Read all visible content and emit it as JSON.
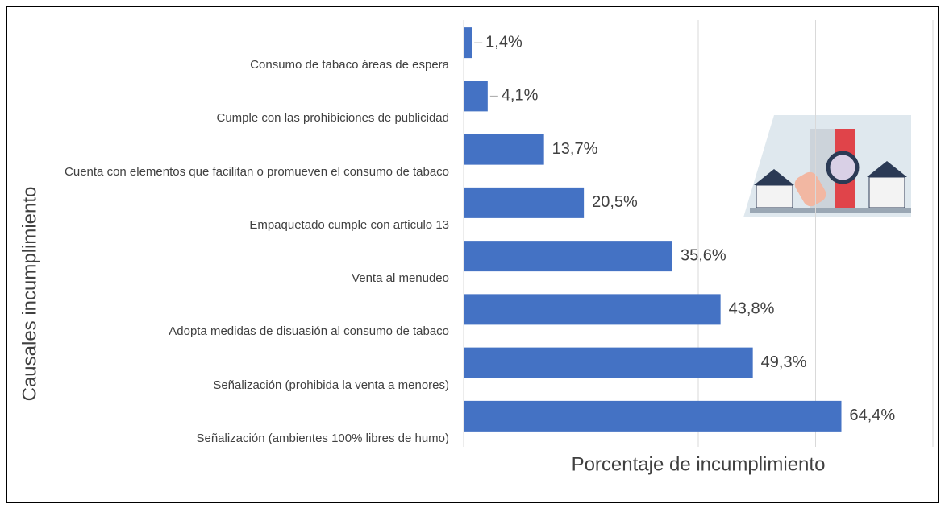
{
  "chart_data": {
    "type": "bar",
    "orientation": "horizontal",
    "categories": [
      "Consumo de tabaco áreas de espera",
      "Cumple con las prohibiciones de publicidad",
      "Cuenta con elementos que facilitan o promueven el consumo de tabaco",
      "Empaquetado cumple con articulo 13",
      "Venta al menudeo",
      "Adopta medidas de disuasión al consumo de tabaco",
      "Señalización (prohibida la venta a menores)",
      "Señalización (ambientes 100% libres de humo)"
    ],
    "values": [
      1.4,
      4.1,
      13.7,
      20.5,
      35.6,
      43.8,
      49.3,
      64.4
    ],
    "value_labels": [
      "1,4%",
      "4,1%",
      "13,7%",
      "20,5%",
      "35,6%",
      "43,8%",
      "49,3%",
      "64,4%"
    ],
    "color": "#4472c4",
    "xlim": [
      0,
      80
    ],
    "xticks": [
      0,
      20,
      40,
      60,
      80
    ],
    "grid": true,
    "x_label": "Porcentaje de incumplimiento",
    "y_label": "Causales incumplimiento"
  }
}
